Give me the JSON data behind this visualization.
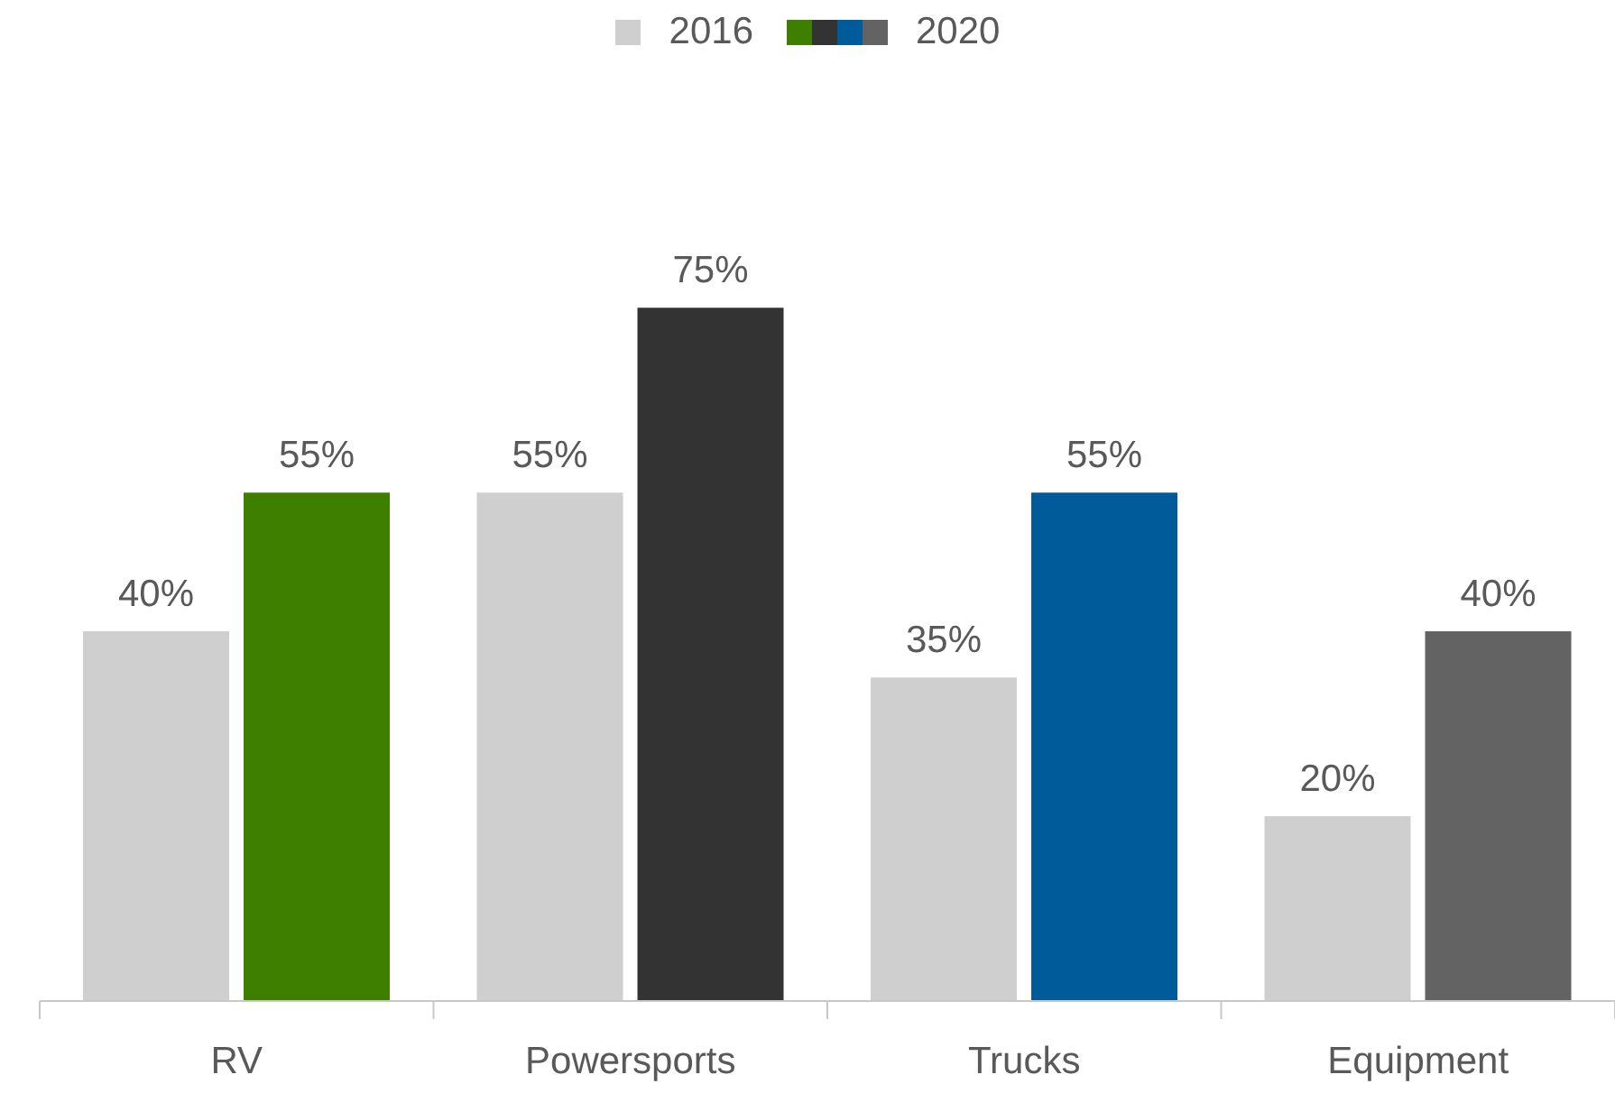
{
  "chart_data": {
    "type": "bar",
    "categories": [
      "RV",
      "Powersports",
      "Trucks",
      "Equipment"
    ],
    "series": [
      {
        "name": "2016",
        "color": "#d0cfcf",
        "values": [
          40,
          55,
          35,
          20
        ],
        "value_labels": [
          "40%",
          "55%",
          "35%",
          "20%"
        ]
      },
      {
        "name": "2020",
        "colors": [
          "#3f7f00",
          "#333333",
          "#005b9a",
          "#636363"
        ],
        "values": [
          55,
          75,
          55,
          40
        ],
        "value_labels": [
          "55%",
          "75%",
          "55%",
          "40%"
        ]
      }
    ],
    "legend": "top"
  }
}
